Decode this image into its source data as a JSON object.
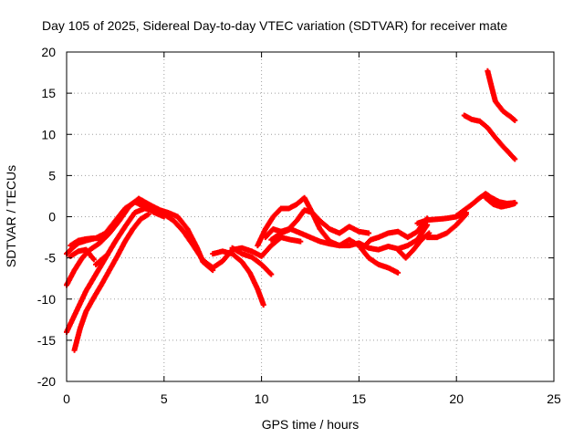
{
  "chart_data": {
    "type": "scatter",
    "title": "Day 105 of 2025, Sidereal Day-to-day VTEC variation (SDTVAR) for receiver mate",
    "xlabel": "GPS time / hours",
    "ylabel": "SDTVAR / TECUs",
    "xlim": [
      0,
      25
    ],
    "ylim": [
      -20,
      20
    ],
    "xticks": [
      0,
      5,
      10,
      15,
      20,
      25
    ],
    "yticks": [
      -20,
      -15,
      -10,
      -5,
      0,
      5,
      10,
      15,
      20
    ],
    "grid": true,
    "legend": "none",
    "marker_color": "#ff0000",
    "series": [
      {
        "x": [
          0,
          0.3,
          0.6,
          1.0,
          1.5,
          2.0,
          2.5,
          3.0,
          3.5,
          4.0,
          4.5,
          5.0
        ],
        "y": [
          -4.5,
          -3.8,
          -3.2,
          -2.9,
          -2.6,
          -2.0,
          -0.5,
          1.0,
          1.8,
          1.2,
          0.5,
          0.0
        ]
      },
      {
        "x": [
          0,
          0.4,
          0.8,
          1.2,
          1.7,
          2.2,
          2.7,
          3.2,
          3.7,
          4.3,
          4.8,
          5.2,
          5.7,
          6.2,
          6.7,
          7.0,
          7.5
        ],
        "y": [
          -8.3,
          -6.5,
          -5.0,
          -4.0,
          -3.2,
          -2.0,
          -0.5,
          1.2,
          2.2,
          1.4,
          0.8,
          0.5,
          0.0,
          -1.5,
          -3.8,
          -5.5,
          -6.5
        ]
      },
      {
        "x": [
          0,
          0.5,
          1.0,
          1.5,
          2.0,
          2.5,
          3.0,
          3.5,
          4.0,
          4.5,
          5.0,
          5.5,
          6.0,
          6.5,
          7.0,
          7.5,
          8.0,
          8.5,
          9.0,
          9.5,
          10.0,
          10.5,
          11.0,
          11.5,
          12.0
        ],
        "y": [
          -14,
          -11.5,
          -9.0,
          -7.0,
          -5.0,
          -3.0,
          -1.2,
          0.5,
          1.0,
          0.8,
          0.3,
          -0.5,
          -1.8,
          -3.5,
          -5.3,
          -6.2,
          -5.4,
          -4.0,
          -3.8,
          -4.2,
          -4.8,
          -3.5,
          -2.5,
          -2.8,
          -3.0
        ]
      },
      {
        "x": [
          0.4,
          0.7,
          1.0,
          1.4,
          1.8,
          2.2,
          2.6,
          3.0,
          3.4,
          3.8,
          4.2
        ],
        "y": [
          -16.2,
          -13.5,
          -11.5,
          -9.8,
          -8.2,
          -6.5,
          -4.8,
          -3.0,
          -1.5,
          -0.3,
          0.3
        ]
      },
      {
        "x": [
          0.2,
          0.6,
          1.0,
          1.4,
          1.9
        ],
        "y": [
          -3.5,
          -2.9,
          -2.7,
          -2.6,
          -2.7
        ]
      },
      {
        "x": [
          0.2,
          0.6,
          1.0,
          1.4
        ],
        "y": [
          -4.8,
          -4.2,
          -4.0,
          -5.2
        ]
      },
      {
        "x": [
          1.5,
          1.9,
          2.1
        ],
        "y": [
          -5.8,
          -5.0,
          -4.6
        ]
      },
      {
        "x": [
          7.5,
          8.0,
          8.5,
          9.0,
          9.4,
          9.8,
          10.1
        ],
        "y": [
          -4.5,
          -4.2,
          -4.5,
          -5.5,
          -6.8,
          -8.8,
          -10.7
        ]
      },
      {
        "x": [
          8.5,
          9.0,
          9.5,
          10.0,
          10.5
        ],
        "y": [
          -3.8,
          -4.5,
          -4.9,
          -5.8,
          -7.0
        ]
      },
      {
        "x": [
          9.8,
          10.2,
          10.6,
          11.0,
          11.4,
          11.8,
          12.2,
          12.6,
          13.0,
          13.5,
          14.0,
          14.5,
          15.0,
          15.5,
          16.0,
          16.5,
          17.0
        ],
        "y": [
          -3.5,
          -1.5,
          0.0,
          1.0,
          1.0,
          1.5,
          2.3,
          0.5,
          -1.5,
          -3.0,
          -3.5,
          -2.8,
          -3.5,
          -5.0,
          -5.8,
          -6.2,
          -6.8
        ]
      },
      {
        "x": [
          10.2,
          10.6,
          11.0,
          11.4,
          11.8,
          12.2,
          12.6,
          13.0,
          13.5,
          14.0,
          14.5,
          15.0,
          15.5
        ],
        "y": [
          -2.5,
          -1.5,
          -1.8,
          -1.5,
          -0.5,
          0.8,
          0.5,
          -0.5,
          -1.5,
          -2.0,
          -1.2,
          -1.8,
          -2.0
        ]
      },
      {
        "x": [
          10.5,
          11.0,
          11.5,
          12.0,
          12.5,
          13.0,
          13.5,
          14.0,
          14.5,
          15.0,
          15.5,
          16.0,
          16.5,
          17.0,
          17.5,
          18.0,
          18.5
        ],
        "y": [
          -2.8,
          -2.0,
          -1.5,
          -2.0,
          -2.5,
          -3.0,
          -3.3,
          -3.5,
          -3.5,
          -3.2,
          -3.8,
          -4.0,
          -3.6,
          -3.9,
          -3.5,
          -2.8,
          -1.0
        ]
      },
      {
        "x": [
          15.2,
          15.6,
          16.0,
          16.5,
          17.0,
          17.5,
          18.0,
          18.5
        ],
        "y": [
          -3.8,
          -2.8,
          -2.5,
          -2.0,
          -1.8,
          -2.5,
          -1.8,
          -0.2
        ]
      },
      {
        "x": [
          17.0,
          17.4,
          17.8,
          18.2,
          18.6
        ],
        "y": [
          -4.0,
          -5.0,
          -4.0,
          -2.8,
          -2.0
        ]
      },
      {
        "x": [
          18.0,
          18.5,
          19.0,
          19.5,
          20.0,
          20.5
        ],
        "y": [
          -0.8,
          -0.4,
          -0.3,
          -0.2,
          0.0,
          0.5
        ]
      },
      {
        "x": [
          18.5,
          19.0,
          19.5,
          20.0,
          20.5
        ],
        "y": [
          -2.5,
          -2.5,
          -2.0,
          -1.0,
          0.3
        ]
      },
      {
        "x": [
          20.0,
          20.4,
          20.8,
          21.2,
          21.5,
          21.8,
          22.2,
          22.6,
          23.0
        ],
        "y": [
          0.1,
          0.8,
          1.5,
          2.3,
          2.8,
          2.3,
          1.8,
          1.6,
          1.7
        ]
      },
      {
        "x": [
          21.5,
          21.9,
          22.3,
          22.7,
          23.0
        ],
        "y": [
          2.3,
          1.5,
          1.2,
          1.4,
          1.6
        ]
      },
      {
        "x": [
          20.4,
          20.8,
          21.2,
          21.6,
          22.0,
          22.4,
          22.8,
          23.0
        ],
        "y": [
          12.3,
          11.8,
          11.6,
          10.8,
          9.6,
          8.5,
          7.5,
          7.0
        ]
      },
      {
        "x": [
          21.6,
          21.8,
          22.0,
          22.4,
          22.8,
          23.0
        ],
        "y": [
          17.7,
          15.8,
          14.0,
          12.8,
          12.1,
          11.7
        ]
      }
    ]
  }
}
